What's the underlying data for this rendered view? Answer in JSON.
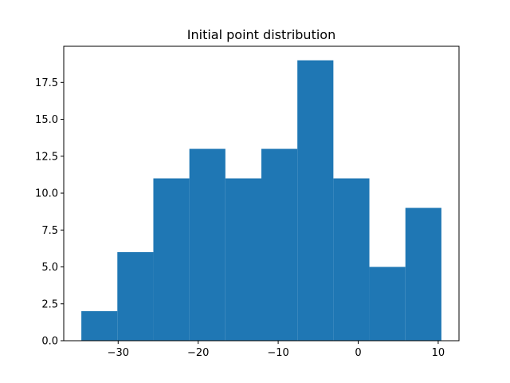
{
  "chart_data": {
    "type": "bar",
    "title": "Initial point distribution",
    "xlabel": "",
    "ylabel": "",
    "bin_edges": [
      -34.6,
      -30.1,
      -25.6,
      -21.1,
      -16.6,
      -12.1,
      -7.6,
      -3.1,
      1.4,
      5.9,
      10.4
    ],
    "values": [
      2,
      6,
      11,
      13,
      11,
      13,
      19,
      11,
      5,
      9
    ],
    "xlim": [
      -36.8,
      12.6
    ],
    "ylim": [
      0,
      19.95
    ],
    "xticks": [
      -30,
      -20,
      -10,
      0,
      10
    ],
    "xtick_labels": [
      "−30",
      "−20",
      "−10",
      "0",
      "10"
    ],
    "yticks": [
      0,
      2.5,
      5,
      7.5,
      10,
      12.5,
      15,
      17.5
    ],
    "ytick_labels": [
      "0.0",
      "2.5",
      "5.0",
      "7.5",
      "10.0",
      "12.5",
      "15.0",
      "17.5"
    ],
    "bar_color": "#1f77b4",
    "grid": false,
    "legend": "none"
  }
}
